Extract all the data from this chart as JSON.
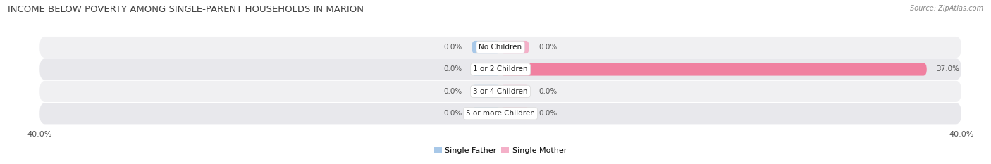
{
  "title": "INCOME BELOW POVERTY AMONG SINGLE-PARENT HOUSEHOLDS IN MARION",
  "source_text": "Source: ZipAtlas.com",
  "categories": [
    "No Children",
    "1 or 2 Children",
    "3 or 4 Children",
    "5 or more Children"
  ],
  "single_father_values": [
    0.0,
    0.0,
    0.0,
    0.0
  ],
  "single_mother_values": [
    0.0,
    37.0,
    0.0,
    0.0
  ],
  "max_value": 40.0,
  "color_father": "#a8c8e8",
  "color_mother": "#f080a0",
  "color_mother_light": "#f4b0c8",
  "color_bg_row": [
    "#f0f0f2",
    "#e8e8ec"
  ],
  "bar_height": 0.58,
  "title_fontsize": 9.5,
  "label_fontsize": 7.5,
  "legend_fontsize": 8,
  "axis_label_fontsize": 8,
  "value_label_color": "#555555"
}
